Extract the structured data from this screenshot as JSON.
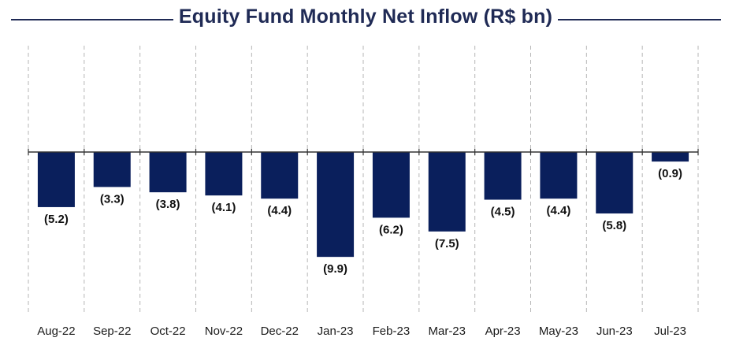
{
  "colors": {
    "bar": "#0a1f5c",
    "title": "#1f2a55",
    "grid": "#b5b5b5",
    "axis": "#333333"
  },
  "chart_data": {
    "type": "bar",
    "title": "Equity Fund Monthly Net Inflow (R$ bn)",
    "xlabel": "",
    "ylabel": "",
    "categories": [
      "Aug-22",
      "Sep-22",
      "Oct-22",
      "Nov-22",
      "Dec-22",
      "Jan-23",
      "Feb-23",
      "Mar-23",
      "Apr-23",
      "May-23",
      "Jun-23",
      "Jul-23"
    ],
    "values": [
      -5.2,
      -3.3,
      -3.8,
      -4.1,
      -4.4,
      -9.9,
      -6.2,
      -7.5,
      -4.5,
      -4.4,
      -5.8,
      -0.9
    ],
    "data_labels": [
      "(5.2)",
      "(3.3)",
      "(3.8)",
      "(4.1)",
      "(4.4)",
      "(9.9)",
      "(6.2)",
      "(7.5)",
      "(4.5)",
      "(4.4)",
      "(5.8)",
      "(0.9)"
    ],
    "ylim": [
      -14,
      11
    ],
    "grid": "vertical-dashed",
    "legend": "none"
  }
}
